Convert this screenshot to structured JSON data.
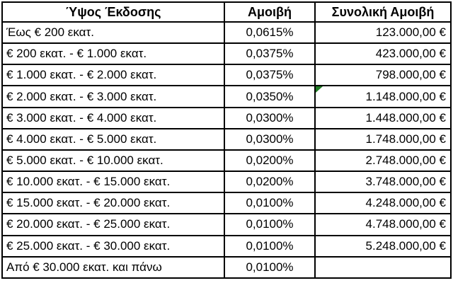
{
  "table": {
    "columns": [
      {
        "id": "tier",
        "label": "Ύψος Έκδοσης"
      },
      {
        "id": "fee",
        "label": "Αμοιβή"
      },
      {
        "id": "total",
        "label": "Συνολική Αμοιβή"
      }
    ],
    "rows": [
      {
        "tier": "Έως € 200 εκατ.",
        "fee": "0,0615%",
        "total": "123.000,00 €"
      },
      {
        "tier": "€ 200 εκατ. - € 1.000 εκατ.",
        "fee": "0,0375%",
        "total": "423.000,00 €"
      },
      {
        "tier": "€ 1.000 εκατ. - € 2.000 εκατ.",
        "fee": "0,0375%",
        "total": "798.000,00 €"
      },
      {
        "tier": "€ 2.000 εκατ. - € 3.000 εκατ.",
        "fee": "0,0350%",
        "total": "1.148.000,00 €",
        "error_indicator": true
      },
      {
        "tier": "€ 3.000 εκατ. - € 4.000 εκατ.",
        "fee": "0,0300%",
        "total": "1.448.000,00 €"
      },
      {
        "tier": "€ 4.000 εκατ. - € 5.000 εκατ.",
        "fee": "0,0300%",
        "total": "1.748.000,00 €"
      },
      {
        "tier": "€ 5.000 εκατ. - € 10.000 εκατ.",
        "fee": "0,0200%",
        "total": "2.748.000,00 €"
      },
      {
        "tier": "€ 10.000 εκατ. - € 15.000 εκατ.",
        "fee": "0,0200%",
        "total": "3.748.000,00 €"
      },
      {
        "tier": "€ 15.000 εκατ. - € 20.000 εκατ.",
        "fee": "0,0100%",
        "total": "4.248.000,00 €"
      },
      {
        "tier": "€ 20.000 εκατ. - € 25.000 εκατ.",
        "fee": "0,0100%",
        "total": "4.748.000,00 €"
      },
      {
        "tier": "€ 25.000 εκατ. - € 30.000 εκατ.",
        "fee": "0,0100%",
        "total": "5.248.000,00 €"
      },
      {
        "tier": "Από € 30.000 εκατ. και πάνω",
        "fee": "0,0100%",
        "total": ""
      }
    ],
    "error_indicator_color": "#1e7b23",
    "border_color": "#000000"
  }
}
